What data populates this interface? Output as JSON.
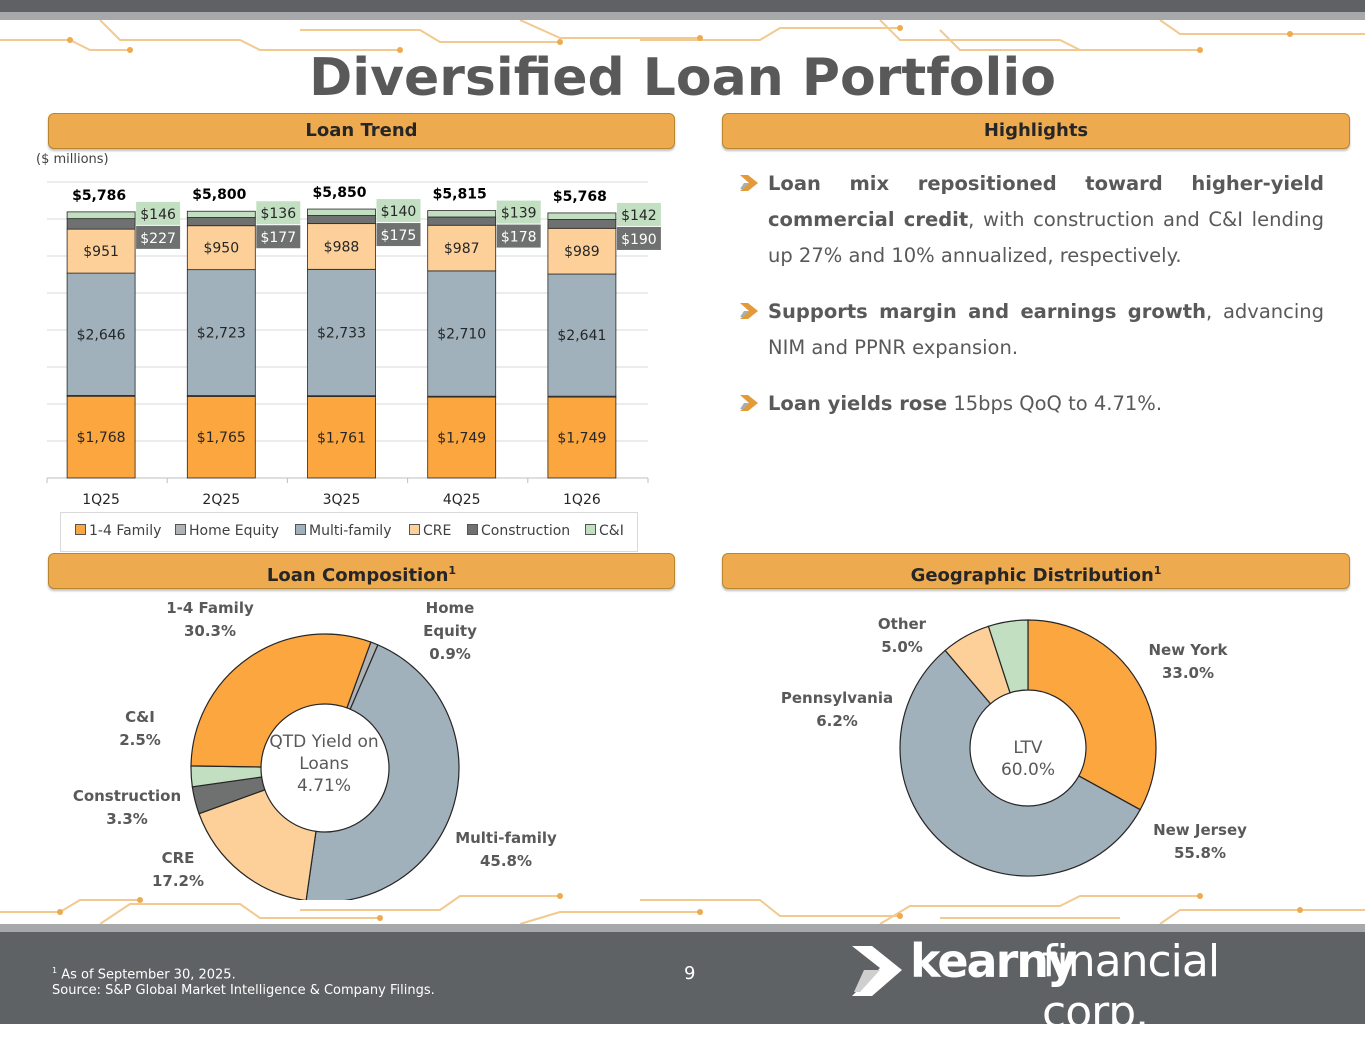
{
  "title": "Diversified Loan Portfolio",
  "headers": {
    "loan_trend": "Loan Trend",
    "highlights": "Highlights",
    "loan_composition": "Loan Composition",
    "geographic": "Geographic Distribution",
    "footnote_mark": "1"
  },
  "units_label": "($ millions)",
  "colors": {
    "accent": "#eeaa4f",
    "one_to_four": "#fba63f",
    "home_equity": "#b0b3b6",
    "multi_family": "#a0b1bb",
    "cre": "#fdd09a",
    "construction": "#6f7070",
    "ci": "#c3dfc2",
    "dark_gray": "#5f6264"
  },
  "chart_data": [
    {
      "type": "bar",
      "stacked": true,
      "categories": [
        "1Q25",
        "2Q25",
        "3Q25",
        "4Q25",
        "1Q26"
      ],
      "series": [
        {
          "name": "1-4 Family",
          "values": [
            1768,
            1765,
            1761,
            1749,
            1749
          ],
          "labels": [
            "$1,768",
            "$1,765",
            "$1,761",
            "$1,749",
            "$1,749"
          ]
        },
        {
          "name": "Home Equity",
          "values": [
            16,
            17,
            18,
            19,
            20
          ],
          "labels": [
            "",
            "",
            "",
            "",
            ""
          ]
        },
        {
          "name": "Multi-family",
          "values": [
            2646,
            2723,
            2733,
            2710,
            2641
          ],
          "labels": [
            "$2,646",
            "$2,723",
            "$2,733",
            "$2,710",
            "$2,641"
          ]
        },
        {
          "name": "CRE",
          "values": [
            951,
            950,
            988,
            987,
            989
          ],
          "labels": [
            "$951",
            "$950",
            "$988",
            "$987",
            "$989"
          ]
        },
        {
          "name": "Construction",
          "values": [
            227,
            177,
            175,
            178,
            190
          ],
          "labels": [
            "$227",
            "$177",
            "$175",
            "$178",
            "$190"
          ]
        },
        {
          "name": "C&I",
          "values": [
            146,
            136,
            140,
            139,
            142
          ],
          "labels": [
            "$146",
            "$136",
            "$140",
            "$139",
            "$142"
          ]
        }
      ],
      "totals": [
        "$5,786",
        "$5,800",
        "$5,850",
        "$5,815",
        "$5,768"
      ],
      "ylim": [
        0,
        6400
      ],
      "grid": true,
      "legend": "bottom"
    },
    {
      "type": "pie",
      "subtype": "donut",
      "center_text": [
        "QTD Yield on",
        "Loans",
        "4.71%"
      ],
      "slices": [
        {
          "name": "Home Equity",
          "value": 0.9,
          "label_lines": [
            "Home",
            "Equity",
            "0.9%"
          ]
        },
        {
          "name": "Multi-family",
          "value": 45.8,
          "label_lines": [
            "Multi-family",
            "45.8%"
          ]
        },
        {
          "name": "CRE",
          "value": 17.2,
          "label_lines": [
            "CRE",
            "17.2%"
          ]
        },
        {
          "name": "Construction",
          "value": 3.3,
          "label_lines": [
            "Construction",
            "3.3%"
          ]
        },
        {
          "name": "C&I",
          "value": 2.5,
          "label_lines": [
            "C&I",
            "2.5%"
          ]
        },
        {
          "name": "1-4 Family",
          "value": 30.3,
          "label_lines": [
            "1-4 Family",
            "30.3%"
          ]
        }
      ]
    },
    {
      "type": "pie",
      "subtype": "donut",
      "center_text": [
        "LTV",
        "60.0%"
      ],
      "slices": [
        {
          "name": "New York",
          "value": 33.0,
          "label_lines": [
            "New York",
            "33.0%"
          ]
        },
        {
          "name": "New Jersey",
          "value": 55.8,
          "label_lines": [
            "New Jersey",
            "55.8%"
          ]
        },
        {
          "name": "Pennsylvania",
          "value": 6.2,
          "label_lines": [
            "Pennsylvania",
            "6.2%"
          ]
        },
        {
          "name": "Other",
          "value": 5.0,
          "label_lines": [
            "Other",
            "5.0%"
          ]
        }
      ]
    }
  ],
  "highlights": [
    {
      "bold": "Loan mix repositioned toward higher-yield commercial credit",
      "text": ", with construction and C&I lending up 27% and 10% annualized, respectively."
    },
    {
      "bold": "Supports margin and earnings growth",
      "text": ", advancing NIM and PPNR expansion."
    },
    {
      "bold": "Loan yields rose",
      "text": " 15bps QoQ to 4.71%."
    }
  ],
  "footer": {
    "footnote_mark": "1",
    "footnote_line1": "As of September 30, 2025.",
    "footnote_line2": "Source: S&P Global Market Intelligence & Company Filings.",
    "page_number": "9",
    "logo_bold": "kearny",
    "logo_light": "financial corp."
  }
}
